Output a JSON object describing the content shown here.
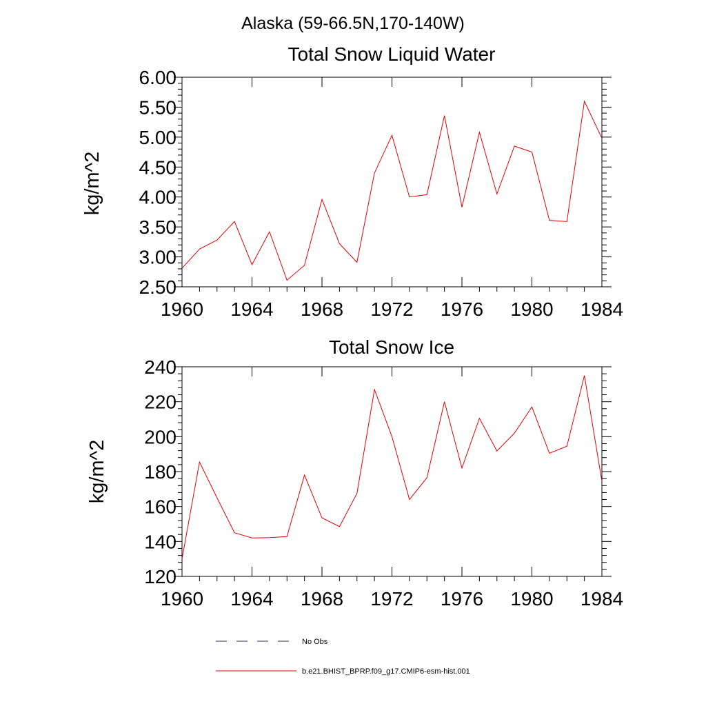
{
  "figure": {
    "suptitle": "Alaska (59-66.5N,170-140W)"
  },
  "legend": {
    "items": [
      {
        "label": "No Obs",
        "color": "#2b2b6b",
        "style": "dashed"
      },
      {
        "label": "b.e21.BHIST_BPRP.f09_g17.CMIP6-esm-hist.001",
        "color": "#e00000",
        "style": "solid"
      }
    ]
  },
  "chart_data": [
    {
      "type": "line",
      "title": "Total Snow Liquid Water",
      "ylabel": "kg/m^2",
      "xlabel": "",
      "xlim": [
        1960,
        1984
      ],
      "ylim": [
        2.5,
        6.0
      ],
      "xticks": [
        1960,
        1964,
        1968,
        1972,
        1976,
        1980,
        1984
      ],
      "xtick_labels": [
        "1960",
        "1964",
        "1968",
        "1972",
        "1976",
        "1980",
        "1984"
      ],
      "yticks": [
        2.5,
        3.0,
        3.5,
        4.0,
        4.5,
        5.0,
        5.5,
        6.0
      ],
      "ytick_labels": [
        "2.50",
        "3.00",
        "3.50",
        "4.00",
        "4.50",
        "5.00",
        "5.50",
        "6.00"
      ],
      "series": [
        {
          "name": "b.e21.BHIST_BPRP.f09_g17.CMIP6-esm-hist.001",
          "color": "#e00000",
          "x": [
            1960,
            1961,
            1962,
            1963,
            1964,
            1965,
            1966,
            1967,
            1968,
            1969,
            1970,
            1971,
            1972,
            1973,
            1974,
            1975,
            1976,
            1977,
            1978,
            1979,
            1980,
            1981,
            1982,
            1983,
            1984
          ],
          "y": [
            2.81,
            3.13,
            3.28,
            3.59,
            2.87,
            3.42,
            2.61,
            2.86,
            3.96,
            3.22,
            2.91,
            4.4,
            5.03,
            4.0,
            4.04,
            5.36,
            3.83,
            5.08,
            4.05,
            4.85,
            4.75,
            3.61,
            3.59,
            5.6,
            4.98
          ]
        }
      ]
    },
    {
      "type": "line",
      "title": "Total Snow Ice",
      "ylabel": "kg/m^2",
      "xlabel": "",
      "xlim": [
        1960,
        1984
      ],
      "ylim": [
        120,
        240
      ],
      "xticks": [
        1960,
        1964,
        1968,
        1972,
        1976,
        1980,
        1984
      ],
      "xtick_labels": [
        "1960",
        "1964",
        "1968",
        "1972",
        "1976",
        "1980",
        "1984"
      ],
      "yticks": [
        120,
        140,
        160,
        180,
        200,
        220,
        240
      ],
      "ytick_labels": [
        "120",
        "140",
        "160",
        "180",
        "200",
        "220",
        "240"
      ],
      "series": [
        {
          "name": "b.e21.BHIST_BPRP.f09_g17.CMIP6-esm-hist.001",
          "color": "#e00000",
          "x": [
            1960,
            1961,
            1962,
            1963,
            1964,
            1965,
            1966,
            1967,
            1968,
            1969,
            1970,
            1971,
            1972,
            1973,
            1974,
            1975,
            1976,
            1977,
            1978,
            1979,
            1980,
            1981,
            1982,
            1983,
            1984
          ],
          "y": [
            130,
            185.5,
            165,
            145,
            142,
            142.2,
            142.8,
            178,
            153.5,
            148.5,
            167.5,
            227,
            200,
            164,
            176.5,
            220,
            182,
            210.5,
            191.8,
            202,
            217,
            190.5,
            194.5,
            235,
            174.5
          ]
        }
      ]
    }
  ]
}
